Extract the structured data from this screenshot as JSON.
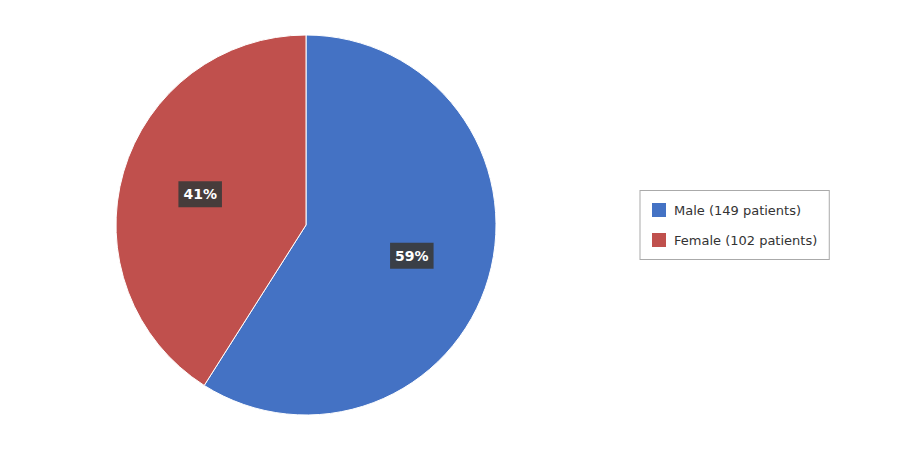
{
  "chart_data": {
    "type": "pie",
    "categories": [
      "Male (149 patients)",
      "Female (102 patients)"
    ],
    "values": [
      59,
      41
    ],
    "value_labels": [
      "59%",
      "41%"
    ],
    "colors": [
      "#4472C4",
      "#C0504D"
    ],
    "data_labels": true,
    "legend": "right"
  }
}
